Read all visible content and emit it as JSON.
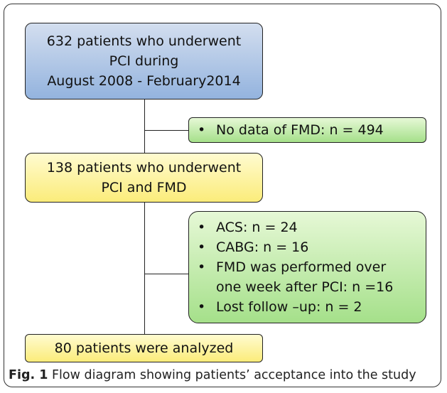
{
  "nodes": [
    {
      "lines": [
        "632 patients who underwent",
        "PCI during",
        "August 2008 - February2014"
      ]
    },
    {
      "lines": [
        "138 patients who underwent",
        "PCI and FMD"
      ]
    },
    {
      "lines": [
        "80 patients were analyzed"
      ]
    }
  ],
  "notes": [
    {
      "items": [
        [
          "No data of FMD: n = 494"
        ]
      ]
    },
    {
      "items": [
        [
          "ACS: n = 24"
        ],
        [
          "CABG: n = 16"
        ],
        [
          "FMD was performed over",
          "one week after PCI: n =16"
        ],
        [
          "Lost follow –up: n = 2"
        ]
      ]
    }
  ],
  "caption": {
    "label": "Fig. 1",
    "text": "Flow diagram showing patients’ acceptance into the study"
  }
}
